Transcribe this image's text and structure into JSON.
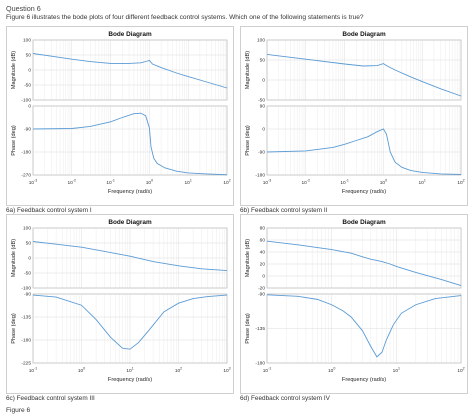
{
  "question": {
    "heading": "Question 6",
    "text": "Figure 6 illustrates the bode plots of four different feedback control systems. Which one of the following statements is true?"
  },
  "figure_label": "Figure 6",
  "colors": {
    "curve": "#5b9bd5",
    "grid": "#dcdcdc",
    "axis": "#8a8a8a"
  },
  "chart_data": [
    {
      "type": "line",
      "caption": "6a)  Feedback control system I",
      "title": "Bode Diagram",
      "xlabel": "Frequency  (rad/s)",
      "xscale": "log",
      "xlim": [
        0.001,
        100
      ],
      "xticks": [
        0.001,
        0.01,
        0.1,
        1,
        10,
        100
      ],
      "xtick_labels": [
        [
          "10",
          "-3"
        ],
        [
          "10",
          "-2"
        ],
        [
          "10",
          "-1"
        ],
        [
          "10",
          "0"
        ],
        [
          "10",
          "1"
        ],
        [
          "10",
          "2"
        ]
      ],
      "magnitude": {
        "ylabel": "Magnitude (dB)",
        "ylim": [
          -100,
          100
        ],
        "yticks": [
          100,
          50,
          0,
          -50,
          -100
        ],
        "x": [
          0.001,
          0.003,
          0.01,
          0.03,
          0.1,
          0.3,
          0.6,
          0.9,
          1,
          1.2,
          2,
          5,
          10,
          30,
          100
        ],
        "y": [
          55,
          46,
          36,
          28,
          22,
          22,
          24,
          30,
          32,
          20,
          8,
          -10,
          -22,
          -40,
          -60
        ]
      },
      "phase": {
        "ylabel": "Phase (deg)",
        "ylim": [
          -270,
          0
        ],
        "yticks": [
          0,
          -90,
          -180,
          -270
        ],
        "x": [
          0.001,
          0.01,
          0.03,
          0.1,
          0.2,
          0.4,
          0.6,
          0.8,
          1,
          1.1,
          1.3,
          1.6,
          2.5,
          5,
          10,
          30,
          100
        ],
        "y": [
          -90,
          -88,
          -80,
          -62,
          -45,
          -30,
          -28,
          -38,
          -85,
          -160,
          -205,
          -225,
          -242,
          -255,
          -262,
          -266,
          -269
        ]
      }
    },
    {
      "type": "line",
      "caption": "6b) Feedback control system II",
      "title": "Bode Diagram",
      "xlabel": "Frequency  (rad/s)",
      "xscale": "log",
      "xlim": [
        0.001,
        100
      ],
      "xticks": [
        0.001,
        0.01,
        0.1,
        1,
        10,
        100
      ],
      "xtick_labels": [
        [
          "10",
          "-3"
        ],
        [
          "10",
          "-2"
        ],
        [
          "10",
          "-1"
        ],
        [
          "10",
          "0"
        ],
        [
          "10",
          "1"
        ],
        [
          "10",
          "2"
        ]
      ],
      "magnitude": {
        "ylabel": "Magnitude (dB)",
        "ylim": [
          -50,
          100
        ],
        "yticks": [
          100,
          50,
          0,
          -50
        ],
        "x": [
          0.001,
          0.01,
          0.1,
          0.3,
          0.7,
          1,
          1.3,
          2,
          5,
          10,
          30,
          100
        ],
        "y": [
          64,
          52,
          40,
          35,
          36,
          41,
          34,
          25,
          8,
          -4,
          -22,
          -40
        ]
      },
      "phase": {
        "ylabel": "Phase (deg)",
        "ylim": [
          -180,
          90
        ],
        "yticks": [
          90,
          0,
          -90,
          -180
        ],
        "x": [
          0.001,
          0.01,
          0.05,
          0.1,
          0.2,
          0.4,
          0.7,
          1,
          1.2,
          1.5,
          2,
          3,
          5,
          10,
          30,
          100
        ],
        "y": [
          -90,
          -86,
          -72,
          -60,
          -45,
          -30,
          -10,
          0,
          -20,
          -90,
          -130,
          -150,
          -162,
          -170,
          -176,
          -178
        ]
      }
    },
    {
      "type": "line",
      "caption": "6c) Feedback control system III",
      "title": "Bode Diagram",
      "xlabel": "Frequency  (rad/s)",
      "xscale": "log",
      "xlim": [
        0.1,
        1000
      ],
      "xticks": [
        0.1,
        1,
        10,
        100,
        1000
      ],
      "xtick_labels": [
        [
          "10",
          "-1"
        ],
        [
          "10",
          "0"
        ],
        [
          "10",
          "1"
        ],
        [
          "10",
          "2"
        ],
        [
          "10",
          "3"
        ]
      ],
      "magnitude": {
        "ylabel": "Magnitude (dB)",
        "ylim": [
          -100,
          100
        ],
        "yticks": [
          100,
          50,
          0,
          -50,
          -100
        ],
        "x": [
          0.1,
          0.3,
          1,
          3,
          10,
          30,
          100,
          300,
          1000
        ],
        "y": [
          55,
          46,
          36,
          22,
          6,
          -12,
          -26,
          -36,
          -42
        ]
      },
      "phase": {
        "ylabel": "Phase (deg)",
        "ylim": [
          -225,
          -90
        ],
        "yticks": [
          -90,
          -135,
          -180,
          -225
        ],
        "x": [
          0.1,
          0.3,
          1,
          2,
          4,
          7,
          10,
          15,
          25,
          50,
          100,
          200,
          400,
          1000
        ],
        "y": [
          -92,
          -96,
          -112,
          -140,
          -175,
          -196,
          -198,
          -185,
          -160,
          -125,
          -108,
          -99,
          -95,
          -92
        ]
      }
    },
    {
      "type": "line",
      "caption": "6d) Feedback control system IV",
      "title": "Bode Diagram",
      "xlabel": "Frequency  (rad/s)",
      "xscale": "log",
      "xlim": [
        0.1,
        100
      ],
      "xticks": [
        0.1,
        1,
        10,
        100
      ],
      "xtick_labels": [
        [
          "10",
          "-1"
        ],
        [
          "10",
          "0"
        ],
        [
          "10",
          "1"
        ],
        [
          "10",
          "2"
        ]
      ],
      "magnitude": {
        "ylabel": "Magnitude (dB)",
        "ylim": [
          -20,
          80
        ],
        "yticks": [
          80,
          60,
          40,
          20,
          0,
          -20
        ],
        "x": [
          0.1,
          0.3,
          1,
          2,
          3,
          4,
          5,
          6,
          8,
          10,
          20,
          50,
          100
        ],
        "y": [
          58,
          52,
          44,
          38,
          32,
          28,
          26,
          24,
          20,
          16,
          6,
          -6,
          -16
        ]
      },
      "phase": {
        "ylabel": "Phase (deg)",
        "ylim": [
          -180,
          -90
        ],
        "yticks": [
          -90,
          -135,
          -180
        ],
        "x": [
          0.1,
          0.3,
          0.6,
          1,
          1.5,
          2,
          3,
          4,
          5,
          6,
          7,
          9,
          12,
          20,
          40,
          100
        ],
        "y": [
          -91,
          -93,
          -97,
          -104,
          -112,
          -120,
          -138,
          -158,
          -172,
          -166,
          -150,
          -130,
          -115,
          -104,
          -96,
          -92
        ]
      }
    }
  ]
}
